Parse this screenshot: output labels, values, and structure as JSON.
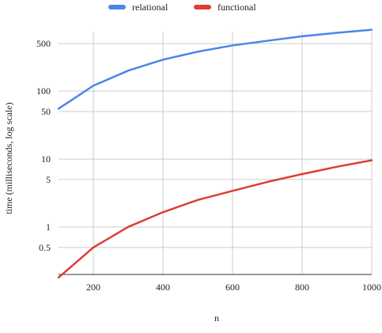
{
  "chart_data": {
    "type": "line",
    "title": "",
    "xlabel": "n",
    "ylabel": "time (milliseconds, log scale)",
    "xlim": [
      100,
      1000
    ],
    "ylim": [
      0.2,
      750
    ],
    "yscale": "log",
    "grid": true,
    "legend_position": "top-center",
    "x_ticks": [
      200,
      400,
      600,
      800,
      1000
    ],
    "y_ticks": [
      {
        "value": 0.5,
        "label": "0.5"
      },
      {
        "value": 1,
        "label": "1"
      },
      {
        "value": 5,
        "label": "5"
      },
      {
        "value": 10,
        "label": "10"
      },
      {
        "value": 50,
        "label": "50"
      },
      {
        "value": 100,
        "label": "100"
      },
      {
        "value": 500,
        "label": "500"
      }
    ],
    "y_gridlines": [
      0.5,
      1,
      5,
      10,
      50,
      100,
      500
    ],
    "x": [
      100,
      200,
      300,
      400,
      500,
      600,
      700,
      800,
      900,
      1000
    ],
    "series": [
      {
        "name": "relational",
        "color": "#4a86e8",
        "values": [
          55,
          120,
          200,
          290,
          380,
          470,
          550,
          640,
          720,
          800
        ]
      },
      {
        "name": "functional",
        "color": "#dc3e32",
        "values": [
          0.18,
          0.5,
          1.0,
          1.65,
          2.5,
          3.4,
          4.6,
          6.0,
          7.7,
          9.6
        ]
      }
    ]
  }
}
